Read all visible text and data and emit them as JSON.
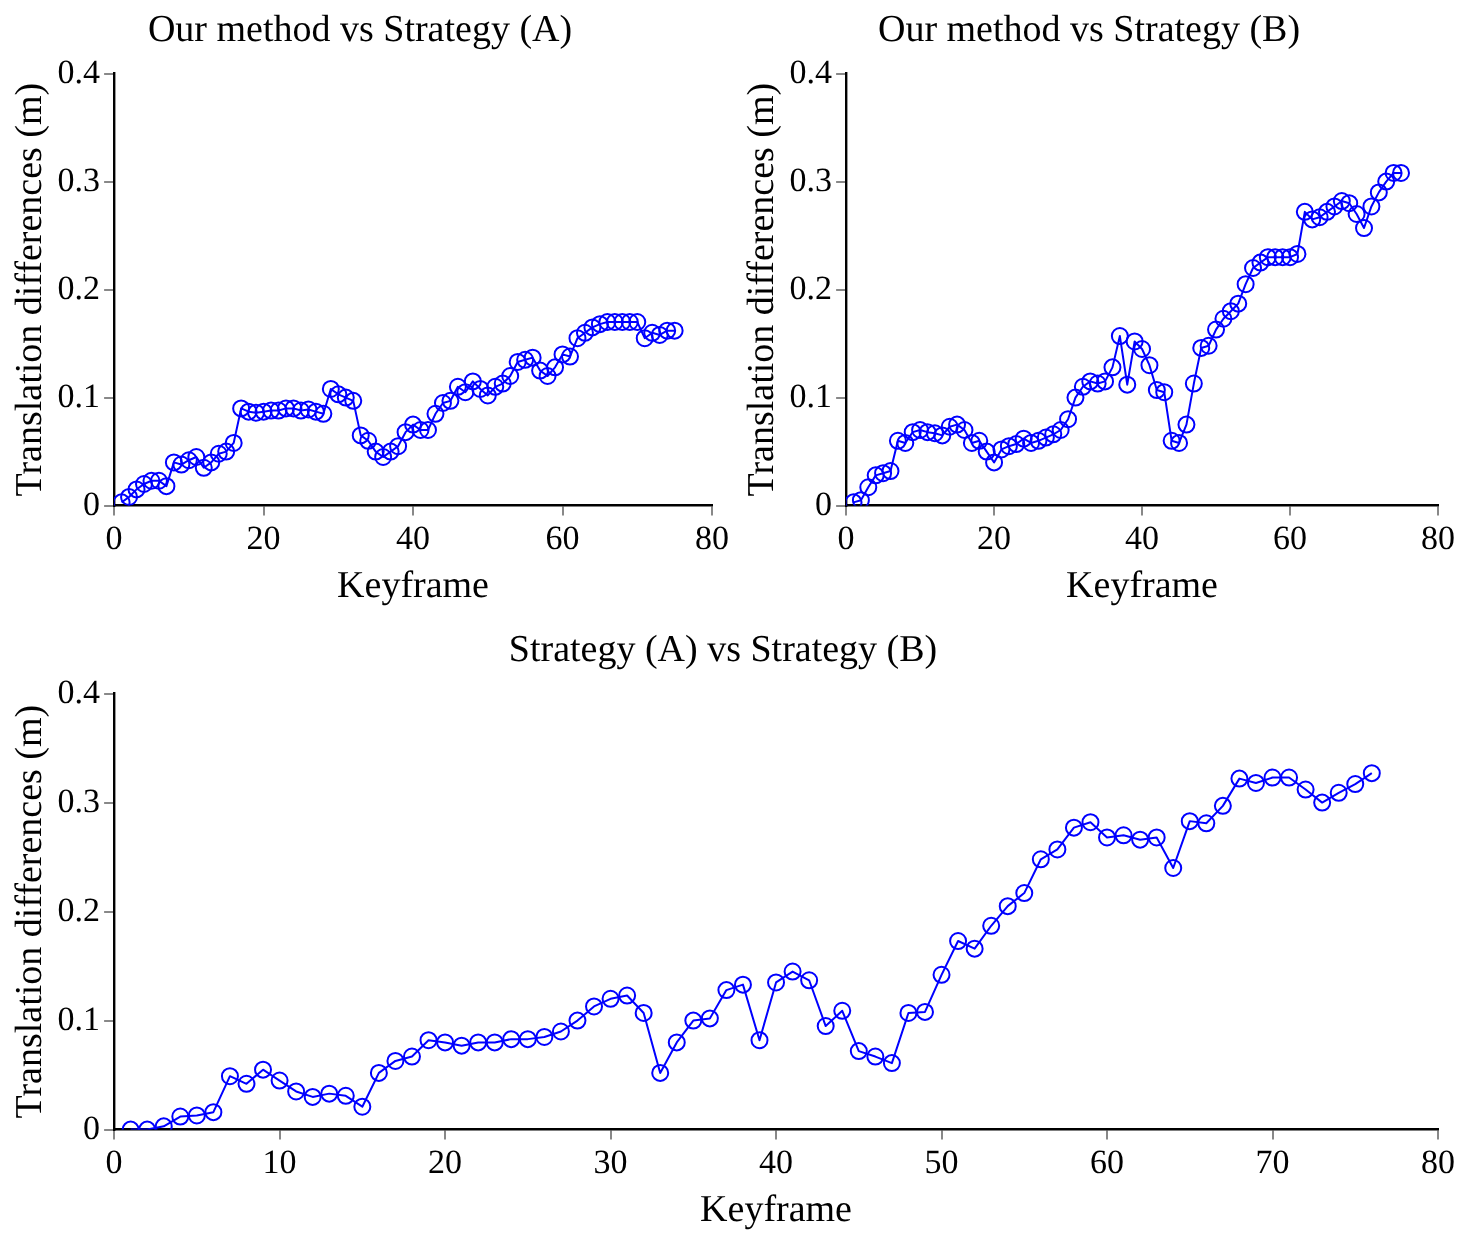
{
  "chart_data": [
    {
      "type": "line",
      "title": "Our method vs Strategy (A)",
      "xlabel": "Keyframe",
      "ylabel": "Translation differences (m)",
      "xlim": [
        0,
        80
      ],
      "xticks": [
        0,
        20,
        40,
        60,
        80
      ],
      "ylim": [
        0,
        0.4
      ],
      "yticks": [
        0,
        0.1,
        0.2,
        0.3,
        0.4
      ],
      "grid": false,
      "legend": false,
      "marker": "circle",
      "line_style": "solid",
      "x": [
        1,
        2,
        3,
        4,
        5,
        6,
        7,
        8,
        9,
        10,
        11,
        12,
        13,
        14,
        15,
        16,
        17,
        18,
        19,
        20,
        21,
        22,
        23,
        24,
        25,
        26,
        27,
        28,
        29,
        30,
        31,
        32,
        33,
        34,
        35,
        36,
        37,
        38,
        39,
        40,
        41,
        42,
        43,
        44,
        45,
        46,
        47,
        48,
        49,
        50,
        51,
        52,
        53,
        54,
        55,
        56,
        57,
        58,
        59,
        60,
        61,
        62,
        63,
        64,
        65,
        66,
        67,
        68,
        69,
        70,
        71,
        72,
        73,
        74,
        75
      ],
      "series": [
        {
          "color": "#0000ff",
          "values": [
            0.003,
            0.008,
            0.015,
            0.02,
            0.023,
            0.023,
            0.018,
            0.04,
            0.038,
            0.042,
            0.045,
            0.035,
            0.04,
            0.048,
            0.05,
            0.058,
            0.09,
            0.087,
            0.086,
            0.087,
            0.088,
            0.088,
            0.09,
            0.09,
            0.088,
            0.089,
            0.087,
            0.085,
            0.108,
            0.103,
            0.1,
            0.097,
            0.065,
            0.06,
            0.05,
            0.045,
            0.05,
            0.055,
            0.068,
            0.075,
            0.07,
            0.07,
            0.085,
            0.095,
            0.097,
            0.11,
            0.105,
            0.115,
            0.108,
            0.102,
            0.11,
            0.113,
            0.12,
            0.133,
            0.135,
            0.137,
            0.125,
            0.12,
            0.128,
            0.14,
            0.138,
            0.155,
            0.16,
            0.165,
            0.168,
            0.17,
            0.17,
            0.17,
            0.17,
            0.17,
            0.155,
            0.16,
            0.158,
            0.162,
            0.162
          ]
        }
      ]
    },
    {
      "type": "line",
      "title": "Our method vs Strategy (B)",
      "xlabel": "Keyframe",
      "ylabel": "Translation differences (m)",
      "xlim": [
        0,
        80
      ],
      "xticks": [
        0,
        20,
        40,
        60,
        80
      ],
      "ylim": [
        0,
        0.4
      ],
      "yticks": [
        0,
        0.1,
        0.2,
        0.3,
        0.4
      ],
      "grid": false,
      "legend": false,
      "marker": "circle",
      "line_style": "solid",
      "x": [
        1,
        2,
        3,
        4,
        5,
        6,
        7,
        8,
        9,
        10,
        11,
        12,
        13,
        14,
        15,
        16,
        17,
        18,
        19,
        20,
        21,
        22,
        23,
        24,
        25,
        26,
        27,
        28,
        29,
        30,
        31,
        32,
        33,
        34,
        35,
        36,
        37,
        38,
        39,
        40,
        41,
        42,
        43,
        44,
        45,
        46,
        47,
        48,
        49,
        50,
        51,
        52,
        53,
        54,
        55,
        56,
        57,
        58,
        59,
        60,
        61,
        62,
        63,
        64,
        65,
        66,
        67,
        68,
        69,
        70,
        71,
        72,
        73,
        74,
        75
      ],
      "series": [
        {
          "color": "#0000ff",
          "values": [
            0.003,
            0.005,
            0.017,
            0.028,
            0.03,
            0.032,
            0.06,
            0.058,
            0.068,
            0.07,
            0.068,
            0.067,
            0.065,
            0.073,
            0.075,
            0.07,
            0.058,
            0.06,
            0.05,
            0.04,
            0.052,
            0.055,
            0.057,
            0.062,
            0.058,
            0.06,
            0.063,
            0.066,
            0.07,
            0.08,
            0.1,
            0.11,
            0.115,
            0.113,
            0.115,
            0.128,
            0.157,
            0.112,
            0.152,
            0.145,
            0.13,
            0.107,
            0.105,
            0.06,
            0.058,
            0.075,
            0.113,
            0.146,
            0.148,
            0.163,
            0.173,
            0.18,
            0.187,
            0.205,
            0.22,
            0.225,
            0.23,
            0.23,
            0.23,
            0.23,
            0.233,
            0.272,
            0.265,
            0.267,
            0.272,
            0.277,
            0.282,
            0.28,
            0.27,
            0.257,
            0.277,
            0.29,
            0.3,
            0.308,
            0.308
          ]
        }
      ]
    },
    {
      "type": "line",
      "title": "Strategy (A) vs Strategy (B)",
      "xlabel": "Keyframe",
      "ylabel": "Translation differences (m)",
      "xlim": [
        0,
        80
      ],
      "xticks": [
        0,
        10,
        20,
        30,
        40,
        50,
        60,
        70,
        80
      ],
      "ylim": [
        0,
        0.4
      ],
      "yticks": [
        0,
        0.1,
        0.2,
        0.3,
        0.4
      ],
      "grid": false,
      "legend": false,
      "marker": "circle",
      "line_style": "solid",
      "x": [
        1,
        2,
        3,
        4,
        5,
        6,
        7,
        8,
        9,
        10,
        11,
        12,
        13,
        14,
        15,
        16,
        17,
        18,
        19,
        20,
        21,
        22,
        23,
        24,
        25,
        26,
        27,
        28,
        29,
        30,
        31,
        32,
        33,
        34,
        35,
        36,
        37,
        38,
        39,
        40,
        41,
        42,
        43,
        44,
        45,
        46,
        47,
        48,
        49,
        50,
        51,
        52,
        53,
        54,
        55,
        56,
        57,
        58,
        59,
        60,
        61,
        62,
        63,
        64,
        65,
        66,
        67,
        68,
        69,
        70,
        71,
        72,
        73,
        74,
        75,
        76
      ],
      "series": [
        {
          "color": "#0000ff",
          "values": [
            0.0,
            0.0,
            0.003,
            0.012,
            0.013,
            0.016,
            0.049,
            0.042,
            0.055,
            0.045,
            0.035,
            0.03,
            0.033,
            0.031,
            0.021,
            0.052,
            0.063,
            0.067,
            0.082,
            0.08,
            0.077,
            0.08,
            0.08,
            0.083,
            0.083,
            0.085,
            0.09,
            0.1,
            0.113,
            0.12,
            0.123,
            0.107,
            0.052,
            0.08,
            0.1,
            0.102,
            0.128,
            0.133,
            0.082,
            0.135,
            0.145,
            0.137,
            0.095,
            0.109,
            0.072,
            0.067,
            0.061,
            0.107,
            0.108,
            0.142,
            0.173,
            0.166,
            0.187,
            0.205,
            0.217,
            0.248,
            0.257,
            0.277,
            0.282,
            0.268,
            0.27,
            0.266,
            0.268,
            0.24,
            0.283,
            0.281,
            0.297,
            0.322,
            0.318,
            0.323,
            0.323,
            0.312,
            0.3,
            0.309,
            0.317,
            0.327
          ]
        }
      ]
    }
  ]
}
